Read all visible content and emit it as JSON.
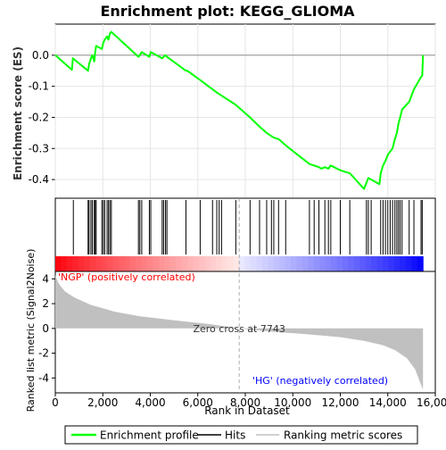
{
  "chart_data": {
    "type": "line",
    "title": "Enrichment plot: KEGG_GLIOMA",
    "es_panel": {
      "ylabel": "Enrichment score (ES)",
      "ylim": [
        -0.46,
        0.1
      ],
      "yticks": [
        0.0,
        -0.1,
        -0.2,
        -0.3,
        -0.4
      ],
      "ytick_labels": [
        "0.0",
        "-0.1",
        "-0.2",
        "-0.3",
        "-0.4"
      ],
      "series_name": "Enrichment profile",
      "line_color": "#00ff00",
      "points": [
        [
          0,
          0
        ],
        [
          700,
          -0.047
        ],
        [
          740,
          -0.01
        ],
        [
          1380,
          -0.05
        ],
        [
          1420,
          -0.03
        ],
        [
          1500,
          -0.01
        ],
        [
          1560,
          0.0
        ],
        [
          1640,
          -0.02
        ],
        [
          1680,
          0.01
        ],
        [
          1720,
          0.03
        ],
        [
          1960,
          0.02
        ],
        [
          2020,
          0.04
        ],
        [
          2080,
          0.05
        ],
        [
          2180,
          0.06
        ],
        [
          2240,
          0.05
        ],
        [
          2300,
          0.07
        ],
        [
          2360,
          0.075
        ],
        [
          3500,
          -0.005
        ],
        [
          3560,
          0.0
        ],
        [
          3640,
          0.01
        ],
        [
          3960,
          -0.005
        ],
        [
          4020,
          0.01
        ],
        [
          4500,
          -0.01
        ],
        [
          4560,
          -0.005
        ],
        [
          4640,
          0.0
        ],
        [
          4700,
          -0.005
        ],
        [
          5500,
          -0.05
        ],
        [
          5560,
          -0.05
        ],
        [
          6100,
          -0.08
        ],
        [
          6620,
          -0.11
        ],
        [
          6800,
          -0.12
        ],
        [
          6900,
          -0.125
        ],
        [
          7000,
          -0.13
        ],
        [
          7600,
          -0.16
        ],
        [
          8200,
          -0.2
        ],
        [
          8600,
          -0.23
        ],
        [
          8900,
          -0.25
        ],
        [
          9100,
          -0.26
        ],
        [
          9200,
          -0.265
        ],
        [
          9400,
          -0.27
        ],
        [
          9700,
          -0.29
        ],
        [
          10200,
          -0.32
        ],
        [
          10700,
          -0.35
        ],
        [
          10900,
          -0.355
        ],
        [
          11100,
          -0.36
        ],
        [
          11200,
          -0.365
        ],
        [
          11350,
          -0.36
        ],
        [
          11500,
          -0.365
        ],
        [
          11600,
          -0.355
        ],
        [
          12000,
          -0.37
        ],
        [
          12200,
          -0.375
        ],
        [
          12400,
          -0.38
        ],
        [
          13000,
          -0.43
        ],
        [
          13100,
          -0.41
        ],
        [
          13180,
          -0.395
        ],
        [
          13300,
          -0.4
        ],
        [
          13650,
          -0.415
        ],
        [
          13700,
          -0.38
        ],
        [
          13800,
          -0.355
        ],
        [
          13900,
          -0.34
        ],
        [
          14000,
          -0.32
        ],
        [
          14100,
          -0.31
        ],
        [
          14200,
          -0.3
        ],
        [
          14300,
          -0.27
        ],
        [
          14380,
          -0.25
        ],
        [
          14450,
          -0.22
        ],
        [
          14520,
          -0.2
        ],
        [
          14600,
          -0.175
        ],
        [
          14900,
          -0.15
        ],
        [
          15100,
          -0.11
        ],
        [
          15400,
          -0.07
        ],
        [
          15450,
          -0.065
        ],
        [
          15480,
          0.0
        ]
      ]
    },
    "hits_panel": {
      "label": "Hits",
      "positions": [
        760,
        1380,
        1420,
        1500,
        1560,
        1640,
        1680,
        1720,
        1960,
        2020,
        2080,
        2180,
        2240,
        2300,
        2360,
        3500,
        3560,
        3640,
        3960,
        4020,
        4500,
        4560,
        4640,
        4700,
        5500,
        6100,
        6620,
        6800,
        6900,
        7000,
        7600,
        8200,
        8600,
        8900,
        9100,
        9200,
        9400,
        9700,
        10700,
        10900,
        11100,
        11350,
        11500,
        11600,
        12000,
        12400,
        13100,
        13180,
        13300,
        13700,
        13800,
        13900,
        14000,
        14100,
        14200,
        14300,
        14380,
        14450,
        14520,
        14600,
        14900,
        15100,
        15400,
        15450
      ]
    },
    "metric_panel": {
      "ylabel": "Ranked list metric (Signal2Noise)",
      "xlabel": "Rank in Dataset",
      "xlim": [
        0,
        16000
      ],
      "xticks": [
        0,
        2000,
        4000,
        6000,
        8000,
        10000,
        12000,
        14000,
        16000
      ],
      "xtick_labels": [
        "0",
        "2,000",
        "4,000",
        "6,000",
        "8,000",
        "10,000",
        "12,000",
        "14,000",
        "16,000"
      ],
      "ylim": [
        -5.2,
        4.6
      ],
      "yticks": [
        4,
        2,
        0,
        -2,
        -4
      ],
      "ytick_labels": [
        "4",
        "2",
        "0",
        "-2",
        "-4"
      ],
      "series_name": "Ranking metric scores",
      "fill_color": "#c0c0c0",
      "n_genes": 15480,
      "metric_points": [
        [
          0,
          4.3
        ],
        [
          150,
          3.6
        ],
        [
          400,
          3.0
        ],
        [
          800,
          2.5
        ],
        [
          1500,
          1.9
        ],
        [
          2500,
          1.35
        ],
        [
          3500,
          1.0
        ],
        [
          5000,
          0.65
        ],
        [
          6500,
          0.35
        ],
        [
          7743,
          0.0
        ],
        [
          9000,
          -0.25
        ],
        [
          10500,
          -0.45
        ],
        [
          12000,
          -0.7
        ],
        [
          13000,
          -1.0
        ],
        [
          13800,
          -1.35
        ],
        [
          14300,
          -1.75
        ],
        [
          14800,
          -2.4
        ],
        [
          15150,
          -3.3
        ],
        [
          15350,
          -4.3
        ],
        [
          15480,
          -4.95
        ]
      ],
      "zero_cross_label": "Zero cross at 7743",
      "zero_cross_rank": 7743,
      "pos_label": "'NGP' (positively correlated)",
      "neg_label": "'HG' (negatively correlated)",
      "pos_color": "#ff0000",
      "neg_color": "#0000ff"
    },
    "legend": {
      "items": [
        {
          "label": "Enrichment profile",
          "color": "#00ff00"
        },
        {
          "label": "Hits",
          "color": "#000000"
        },
        {
          "label": "Ranking metric scores",
          "color": "#c0c0c0"
        }
      ]
    }
  }
}
